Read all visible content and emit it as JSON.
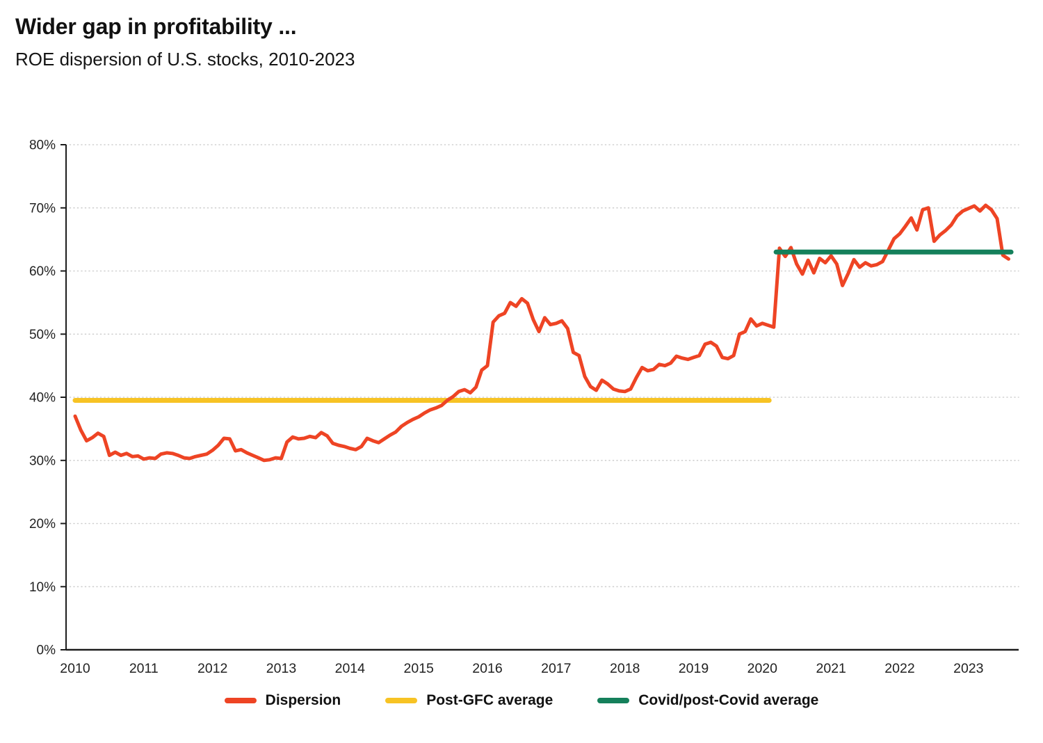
{
  "header": {
    "title": "Wider gap in profitability ...",
    "subtitle": "ROE dispersion of U.S. stocks, 2010-2023"
  },
  "colors": {
    "dispersion": "#ee4424",
    "post_gfc": "#f7c324",
    "covid": "#15805b",
    "grid": "#cfcfcf",
    "axis": "#1c1c1c",
    "text": "#222222"
  },
  "chart_data": {
    "type": "line",
    "title": "Wider gap in profitability ...",
    "subtitle": "ROE dispersion of U.S. stocks, 2010-2023",
    "xlabel": "",
    "ylabel": "",
    "xlim": [
      2010,
      2023.7
    ],
    "ylim": [
      0,
      80
    ],
    "y_ticks": [
      0,
      10,
      20,
      30,
      40,
      50,
      60,
      70,
      80
    ],
    "y_tick_suffix": "%",
    "x_ticks": [
      2010,
      2011,
      2012,
      2013,
      2014,
      2015,
      2016,
      2017,
      2018,
      2019,
      2020,
      2021,
      2022,
      2023
    ],
    "grid": "horizontal-dotted",
    "legend_position": "bottom",
    "draw_order": [
      1,
      0,
      2
    ],
    "series": [
      {
        "name": "Dispersion",
        "type": "line",
        "color": "#ee4424",
        "x_start": 2010,
        "x_step": 0.0833333,
        "values": [
          37.0,
          34.8,
          33.1,
          33.6,
          34.3,
          33.8,
          30.8,
          31.3,
          30.8,
          31.1,
          30.6,
          30.7,
          30.2,
          30.4,
          30.3,
          31.0,
          31.2,
          31.1,
          30.8,
          30.4,
          30.3,
          30.6,
          30.8,
          31.0,
          31.6,
          32.4,
          33.5,
          33.4,
          31.5,
          31.7,
          31.2,
          30.8,
          30.4,
          30.0,
          30.1,
          30.4,
          30.3,
          32.9,
          33.7,
          33.4,
          33.5,
          33.8,
          33.6,
          34.4,
          33.9,
          32.7,
          32.4,
          32.2,
          31.9,
          31.7,
          32.2,
          33.5,
          33.1,
          32.8,
          33.4,
          34.0,
          34.5,
          35.4,
          36.0,
          36.5,
          36.9,
          37.5,
          38.0,
          38.3,
          38.7,
          39.5,
          40.1,
          40.9,
          41.2,
          40.7,
          41.6,
          44.3,
          45.0,
          51.9,
          52.9,
          53.3,
          55.0,
          54.4,
          55.6,
          54.9,
          52.3,
          50.4,
          52.6,
          51.5,
          51.7,
          52.1,
          50.9,
          47.1,
          46.6,
          43.3,
          41.7,
          41.1,
          42.7,
          42.1,
          41.3,
          41.0,
          40.9,
          41.3,
          43.1,
          44.7,
          44.2,
          44.4,
          45.2,
          45.0,
          45.4,
          46.5,
          46.2,
          46.0,
          46.3,
          46.6,
          48.4,
          48.7,
          48.1,
          46.3,
          46.1,
          46.6,
          50.0,
          50.4,
          52.4,
          51.3,
          51.7,
          51.4,
          51.1,
          63.6,
          62.3,
          63.7,
          61.1,
          59.5,
          61.7,
          59.7,
          62.0,
          61.3,
          62.4,
          61.1,
          57.7,
          59.6,
          61.8,
          60.6,
          61.3,
          60.8,
          61.0,
          61.5,
          63.3,
          65.1,
          65.9,
          67.1,
          68.4,
          66.5,
          69.7,
          70.0,
          64.7,
          65.7,
          66.4,
          67.3,
          68.7,
          69.5,
          69.9,
          70.3,
          69.5,
          70.4,
          69.7,
          68.3,
          62.5,
          61.9
        ]
      },
      {
        "name": "Post-GFC average",
        "type": "hline",
        "color": "#f7c324",
        "value": 39.5,
        "x_range": [
          2010.0,
          2020.1
        ]
      },
      {
        "name": "Covid/post-Covid average",
        "type": "hline",
        "color": "#15805b",
        "value": 63.0,
        "x_range": [
          2020.2,
          2023.62
        ]
      }
    ]
  },
  "legend": {
    "items": [
      {
        "label": "Dispersion"
      },
      {
        "label": "Post-GFC average"
      },
      {
        "label": "Covid/post-Covid average"
      }
    ]
  }
}
